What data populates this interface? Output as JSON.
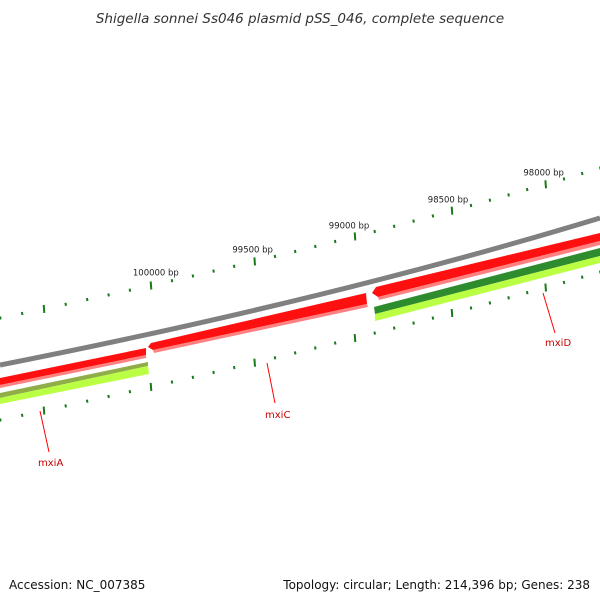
{
  "title": "Shigella sonnei Ss046 plasmid pSS_046, complete sequence",
  "footer": {
    "accession": "Accession: NC_007385",
    "summary": "Topology: circular; Length: 214,396 bp; Genes: 238"
  },
  "scale": {
    "unit": "bp",
    "labels": [
      {
        "bp": 100000,
        "text": "100000 bp"
      },
      {
        "bp": 99500,
        "text": "99500 bp"
      },
      {
        "bp": 99000,
        "text": "99000 bp"
      },
      {
        "bp": 98500,
        "text": "98500 bp"
      },
      {
        "bp": 98000,
        "text": "98000 bp"
      }
    ]
  },
  "genes": [
    {
      "name": "mxiA",
      "color": "#ff0000"
    },
    {
      "name": "mxiC",
      "color": "#ff0000"
    },
    {
      "name": "mxiD",
      "color": "#ff0000"
    }
  ],
  "colors": {
    "backbone": "#808080",
    "cds": "#ff1010",
    "cds_shadow": "#ff7070",
    "feature_light": "#bbff44",
    "feature_dark": "#2e8b2e",
    "tick": "#1a7a1a",
    "label": "#cc0000"
  }
}
